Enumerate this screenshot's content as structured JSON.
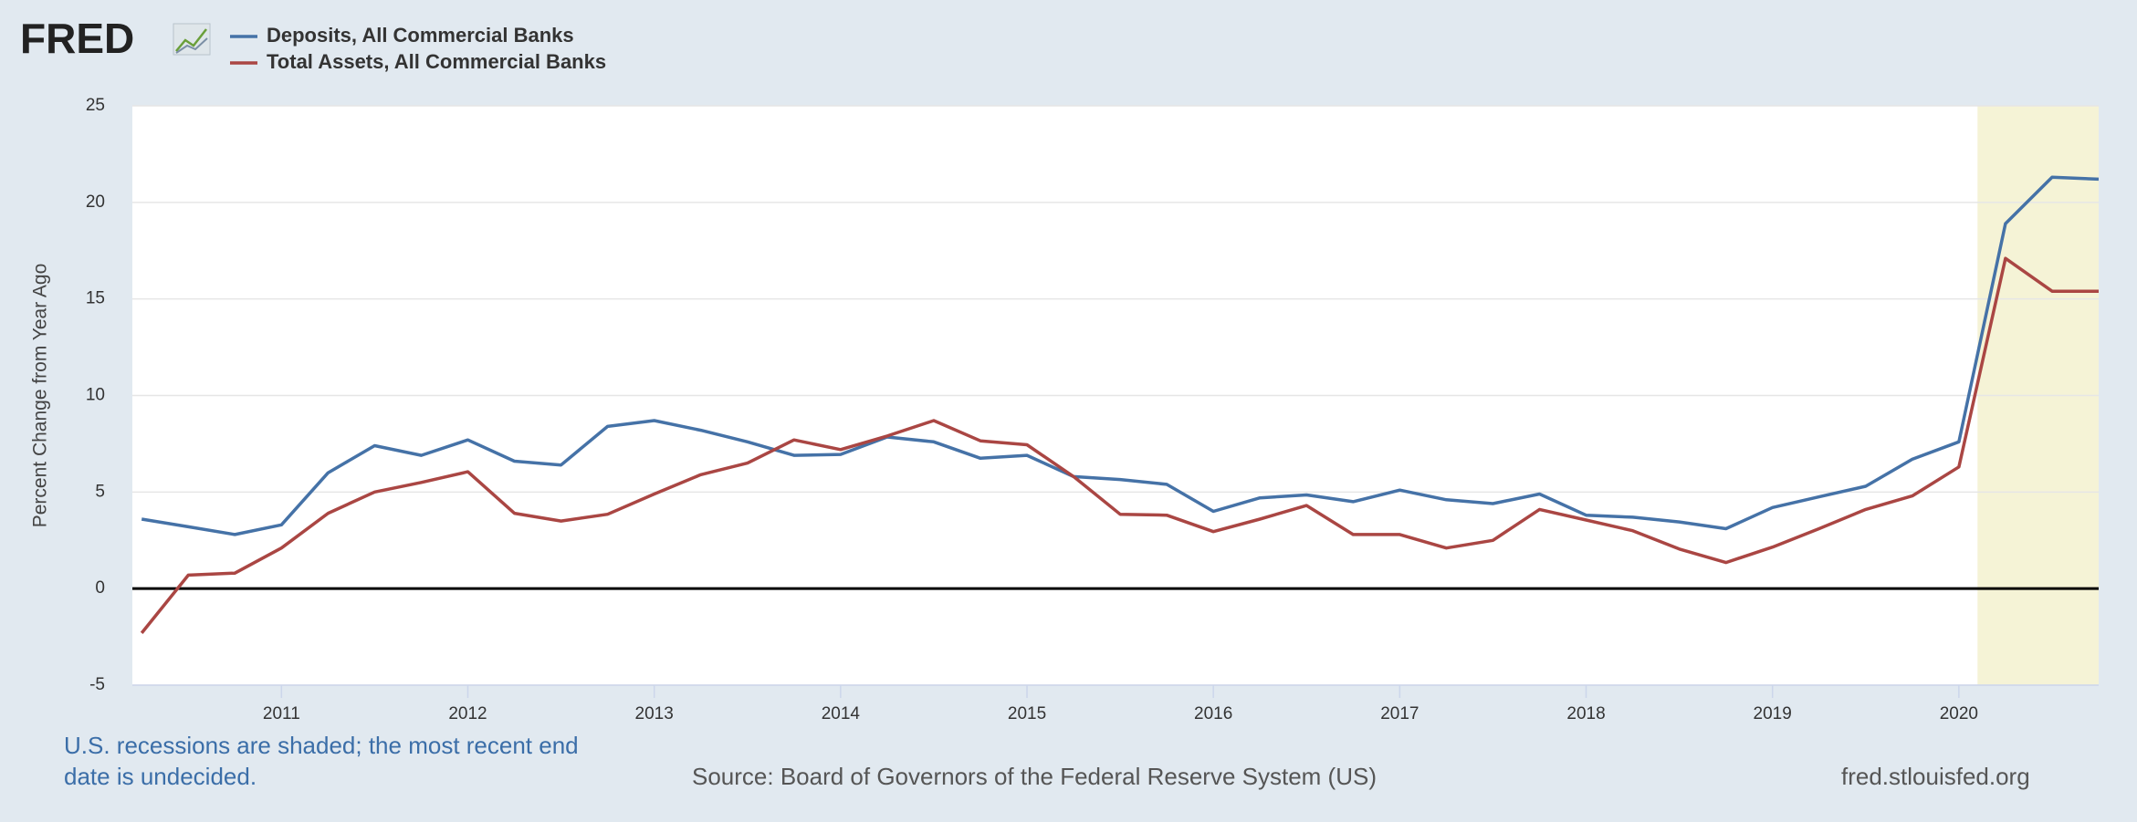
{
  "logo": "FRED",
  "chart_data": {
    "type": "line",
    "y_label": "Percent Change from Year Ago",
    "x": [
      2010.25,
      2010.5,
      2010.75,
      2011,
      2011.25,
      2011.5,
      2011.75,
      2012,
      2012.25,
      2012.5,
      2012.75,
      2013,
      2013.25,
      2013.5,
      2013.75,
      2014,
      2014.25,
      2014.5,
      2014.75,
      2015,
      2015.25,
      2015.5,
      2015.75,
      2016,
      2016.25,
      2016.5,
      2016.75,
      2017,
      2017.25,
      2017.5,
      2017.75,
      2018,
      2018.25,
      2018.5,
      2018.75,
      2019,
      2019.25,
      2019.5,
      2019.75,
      2020,
      2020.25,
      2020.5,
      2020.75
    ],
    "series": [
      {
        "name": "Deposits, All Commercial Banks",
        "color": "#4572a7",
        "values": [
          3.6,
          3.2,
          2.8,
          3.3,
          6.0,
          7.4,
          6.9,
          7.7,
          6.6,
          6.4,
          8.4,
          8.7,
          8.2,
          7.6,
          6.9,
          6.95,
          7.85,
          7.6,
          6.75,
          6.9,
          5.8,
          5.65,
          5.4,
          4.0,
          4.7,
          4.85,
          4.5,
          5.1,
          4.6,
          4.4,
          4.9,
          3.8,
          3.7,
          3.45,
          3.1,
          4.2,
          4.75,
          5.3,
          6.7,
          7.6,
          18.9,
          21.3,
          21.2
        ]
      },
      {
        "name": "Total Assets, All Commercial Banks",
        "color": "#aa4643",
        "values": [
          -2.3,
          0.7,
          0.8,
          2.1,
          3.9,
          5.0,
          5.5,
          6.05,
          3.9,
          3.5,
          3.85,
          4.9,
          5.9,
          6.5,
          7.7,
          7.2,
          7.9,
          8.7,
          7.65,
          7.45,
          5.8,
          3.85,
          3.8,
          2.95,
          3.6,
          4.3,
          2.8,
          2.8,
          2.1,
          2.5,
          4.1,
          3.55,
          3.0,
          2.05,
          1.35,
          2.15,
          3.1,
          4.1,
          4.8,
          6.3,
          17.1,
          15.4,
          15.4
        ]
      }
    ],
    "xlim": [
      2010.2,
      2020.75
    ],
    "xticks": [
      2011,
      2012,
      2013,
      2014,
      2015,
      2016,
      2017,
      2018,
      2019,
      2020
    ],
    "ylim": [
      -5,
      25
    ],
    "yticks": [
      -5,
      0,
      5,
      10,
      15,
      20,
      25
    ],
    "grid": true,
    "recession": [
      2020.1,
      2020.75
    ],
    "recession_color": "#f5f3d6",
    "recession_note": "U.S. recessions are shaded; the most recent end date is undecided.",
    "source": "Source: Board of Governors of the Federal Reserve System (US)",
    "site": "fred.stlouisfed.org"
  }
}
